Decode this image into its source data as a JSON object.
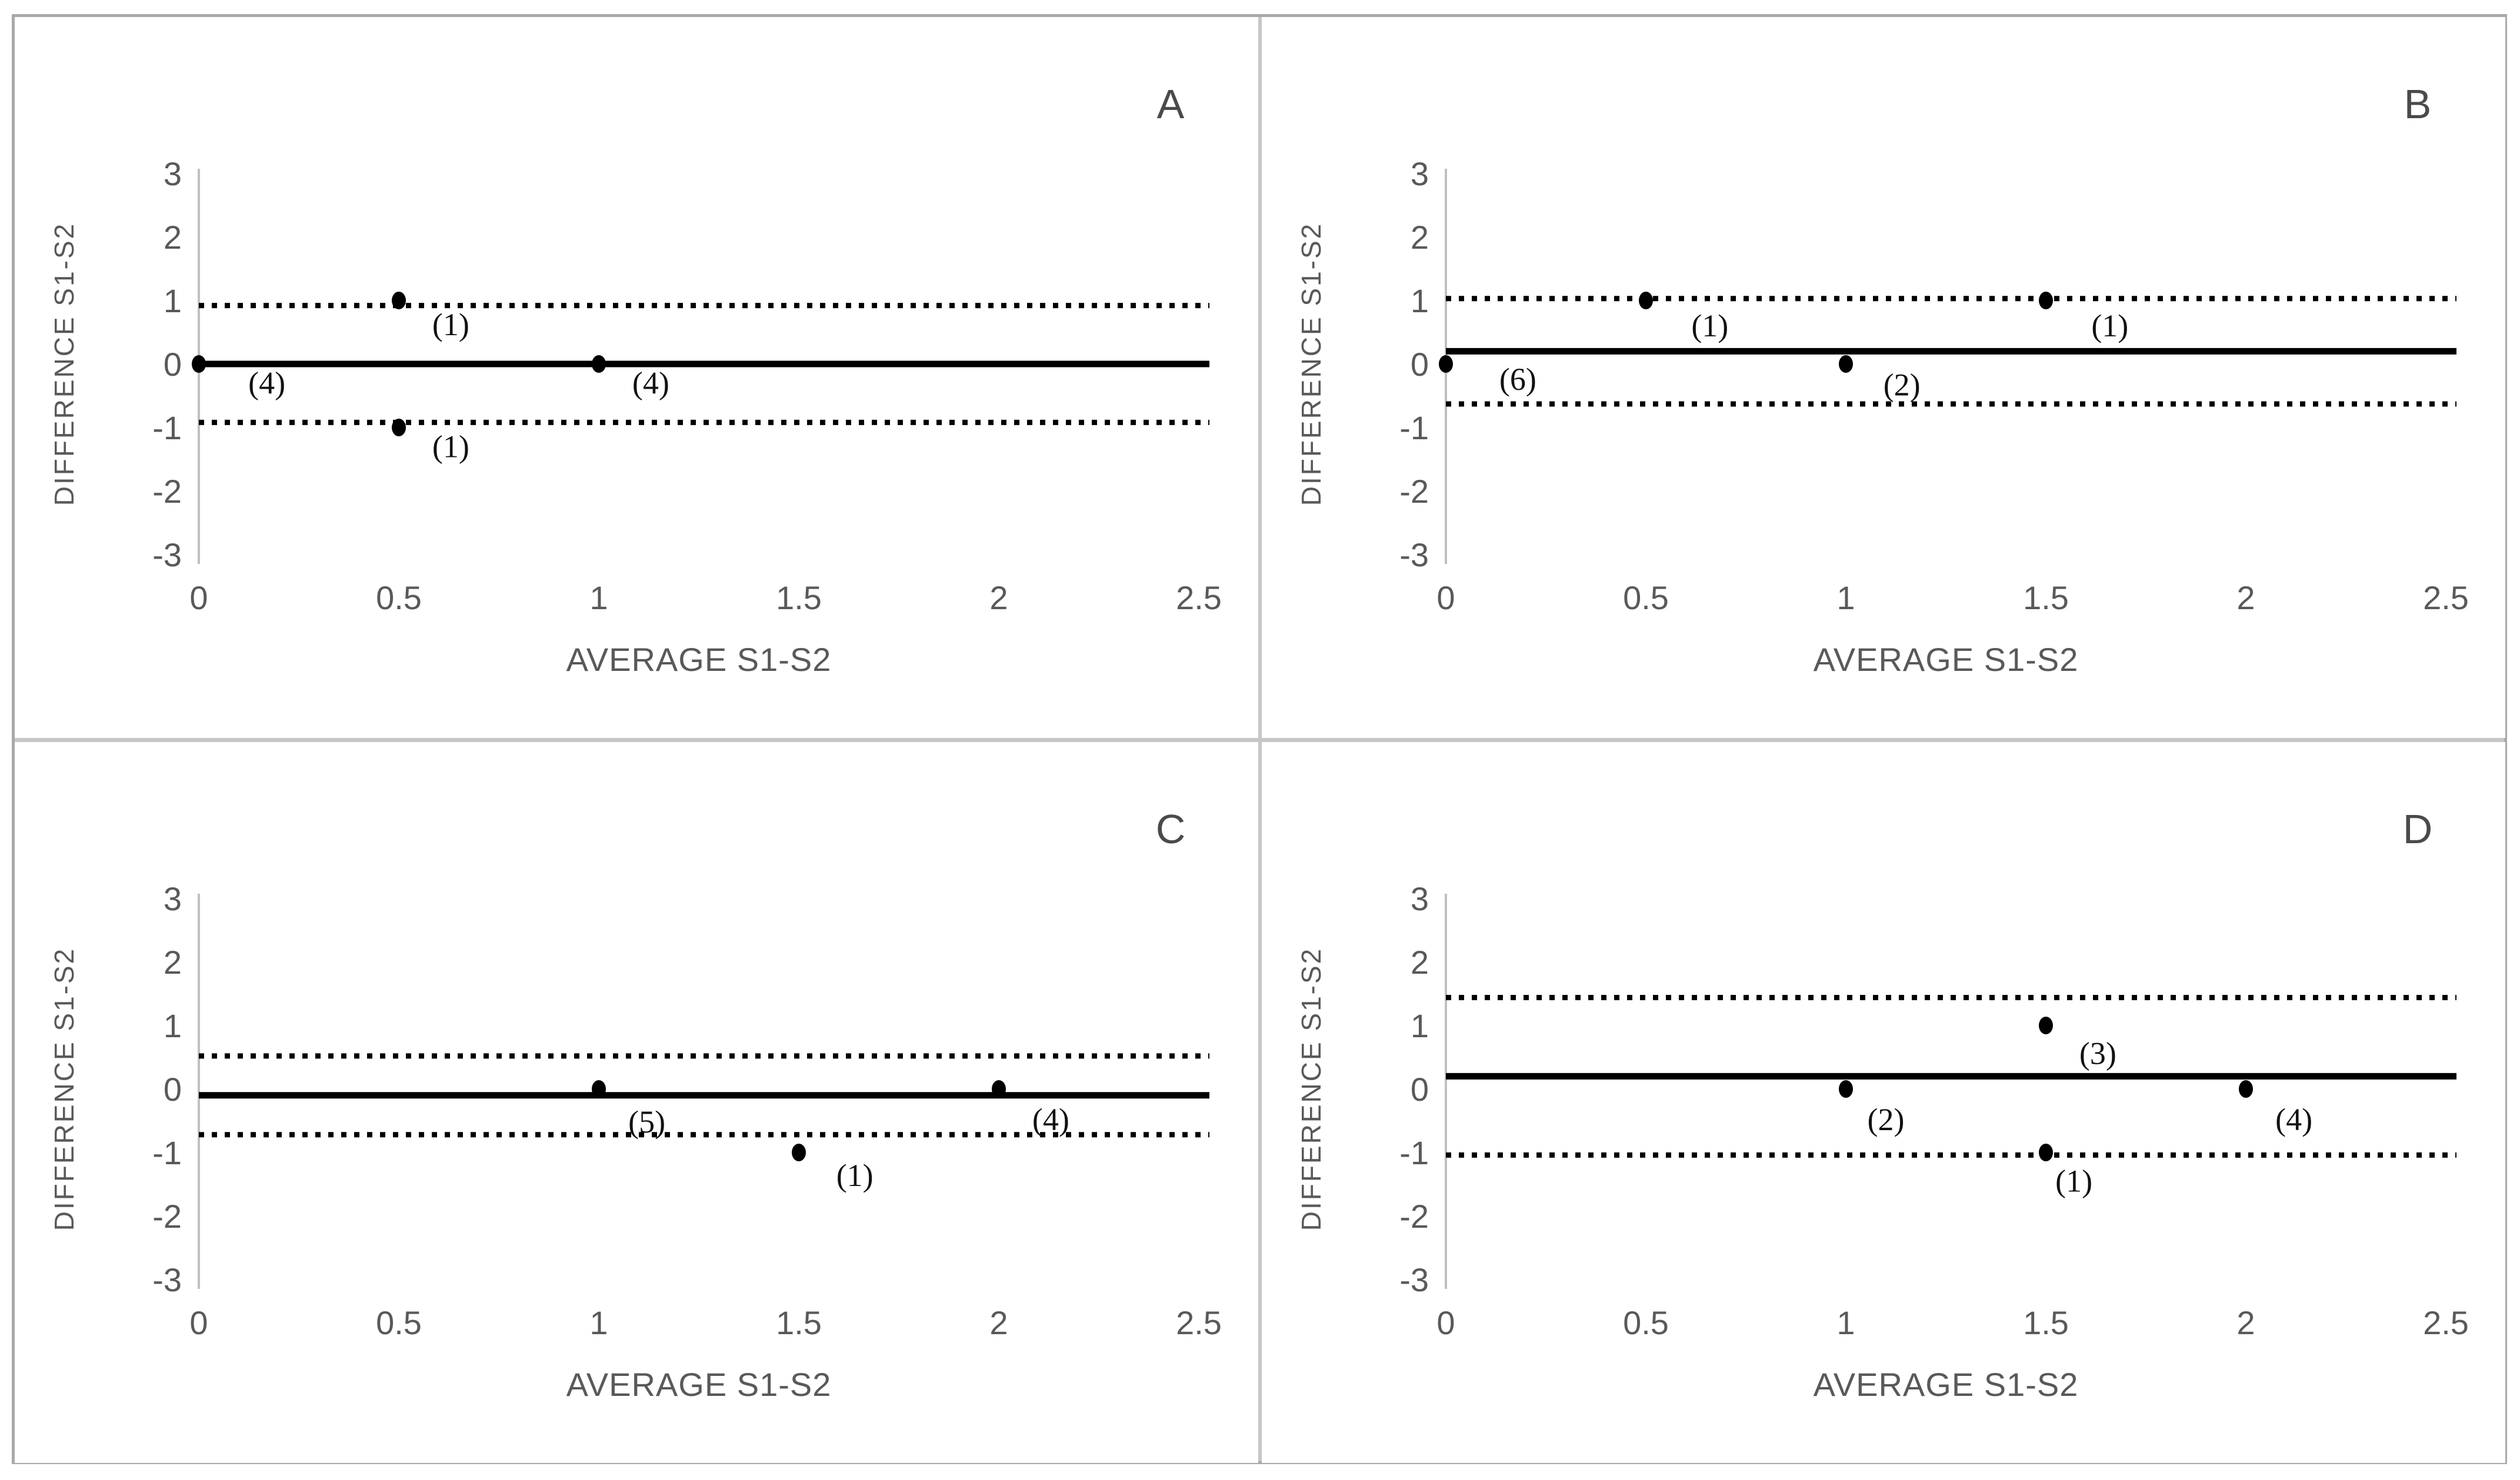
{
  "figure": {
    "xlabel": "AVERAGE S1-S2",
    "ylabel": "DIFFERENCE S1-S2",
    "x_tick_labels": [
      "0",
      "0.5",
      "1",
      "1.5",
      "2",
      "2.5"
    ],
    "y_tick_labels": [
      "3",
      "2",
      "1",
      "0",
      "-1",
      "-2",
      "-3"
    ],
    "colors": {
      "axis_text": "#595959",
      "panel_letter": "#4a4a4a",
      "data_black": "#000000",
      "axis_line": "#c0c0c0",
      "border_outer": "#a9a9a9",
      "border_inner": "#c6c6c6"
    }
  },
  "chart_data": [
    {
      "type": "scatter",
      "panel": "A",
      "title": "A",
      "xlabel": "AVERAGE S1-S2",
      "ylabel": "DIFFERENCE S1-S2",
      "xlim": [
        0,
        2.5
      ],
      "ylim": [
        -3,
        3
      ],
      "x_ticks": [
        0,
        0.5,
        1,
        1.5,
        2,
        2.5
      ],
      "y_ticks": [
        3,
        2,
        1,
        0,
        -1,
        -2,
        -3
      ],
      "mean_line": 0.0,
      "upper_limit": 0.92,
      "lower_limit": -0.92,
      "points": [
        {
          "x": 0,
          "y": 0,
          "count": 4,
          "label": "(4)",
          "label_x": 0.17,
          "label_y": -0.3
        },
        {
          "x": 0.5,
          "y": 1,
          "count": 1,
          "label": "(1)",
          "label_x": 0.63,
          "label_y": 0.62
        },
        {
          "x": 1,
          "y": 0,
          "count": 4,
          "label": "(4)",
          "label_x": 1.13,
          "label_y": -0.3
        },
        {
          "x": 0.5,
          "y": -1,
          "count": 1,
          "label": "(1)",
          "label_x": 0.63,
          "label_y": -1.3
        }
      ]
    },
    {
      "type": "scatter",
      "panel": "B",
      "title": "B",
      "xlabel": "AVERAGE S1-S2",
      "ylabel": "DIFFERENCE S1-S2",
      "xlim": [
        0,
        2.5
      ],
      "ylim": [
        -3,
        3
      ],
      "x_ticks": [
        0,
        0.5,
        1,
        1.5,
        2,
        2.5
      ],
      "y_ticks": [
        3,
        2,
        1,
        0,
        -1,
        -2,
        -3
      ],
      "mean_line": 0.2,
      "upper_limit": 1.03,
      "lower_limit": -0.63,
      "points": [
        {
          "x": 0,
          "y": 0,
          "count": 6,
          "label": "(6)",
          "label_x": 0.18,
          "label_y": -0.24
        },
        {
          "x": 0.5,
          "y": 1,
          "count": 1,
          "label": "(1)",
          "label_x": 0.66,
          "label_y": 0.6
        },
        {
          "x": 1,
          "y": 0,
          "count": 2,
          "label": "(2)",
          "label_x": 1.14,
          "label_y": -0.33
        },
        {
          "x": 1.5,
          "y": 1,
          "count": 1,
          "label": "(1)",
          "label_x": 1.66,
          "label_y": 0.6
        }
      ]
    },
    {
      "type": "scatter",
      "panel": "C",
      "title": "C",
      "xlabel": "AVERAGE S1-S2",
      "ylabel": "DIFFERENCE S1-S2",
      "xlim": [
        0,
        2.5
      ],
      "ylim": [
        -3,
        3
      ],
      "x_ticks": [
        0,
        0.5,
        1,
        1.5,
        2,
        2.5
      ],
      "y_ticks": [
        3,
        2,
        1,
        0,
        -1,
        -2,
        -3
      ],
      "mean_line": -0.1,
      "upper_limit": 0.52,
      "lower_limit": -0.72,
      "points": [
        {
          "x": 1,
          "y": 0,
          "count": 5,
          "label": "(5)",
          "label_x": 1.12,
          "label_y": -0.52
        },
        {
          "x": 2,
          "y": 0,
          "count": 4,
          "label": "(4)",
          "label_x": 2.13,
          "label_y": -0.48
        },
        {
          "x": 1.5,
          "y": -1,
          "count": 1,
          "label": "(1)",
          "label_x": 1.64,
          "label_y": -1.36
        }
      ]
    },
    {
      "type": "scatter",
      "panel": "D",
      "title": "D",
      "xlabel": "AVERAGE S1-S2",
      "ylabel": "DIFFERENCE S1-S2",
      "xlim": [
        0,
        2.5
      ],
      "ylim": [
        -3,
        3
      ],
      "x_ticks": [
        0,
        0.5,
        1,
        1.5,
        2,
        2.5
      ],
      "y_ticks": [
        3,
        2,
        1,
        0,
        -1,
        -2,
        -3
      ],
      "mean_line": 0.2,
      "upper_limit": 1.44,
      "lower_limit": -1.04,
      "points": [
        {
          "x": 1,
          "y": 0,
          "count": 2,
          "label": "(2)",
          "label_x": 1.1,
          "label_y": -0.48
        },
        {
          "x": 1.5,
          "y": 1,
          "count": 3,
          "label": "(3)",
          "label_x": 1.63,
          "label_y": 0.56
        },
        {
          "x": 2,
          "y": 0,
          "count": 4,
          "label": "(4)",
          "label_x": 2.12,
          "label_y": -0.48
        },
        {
          "x": 1.5,
          "y": -1,
          "count": 1,
          "label": "(1)",
          "label_x": 1.57,
          "label_y": -1.45
        }
      ]
    }
  ]
}
